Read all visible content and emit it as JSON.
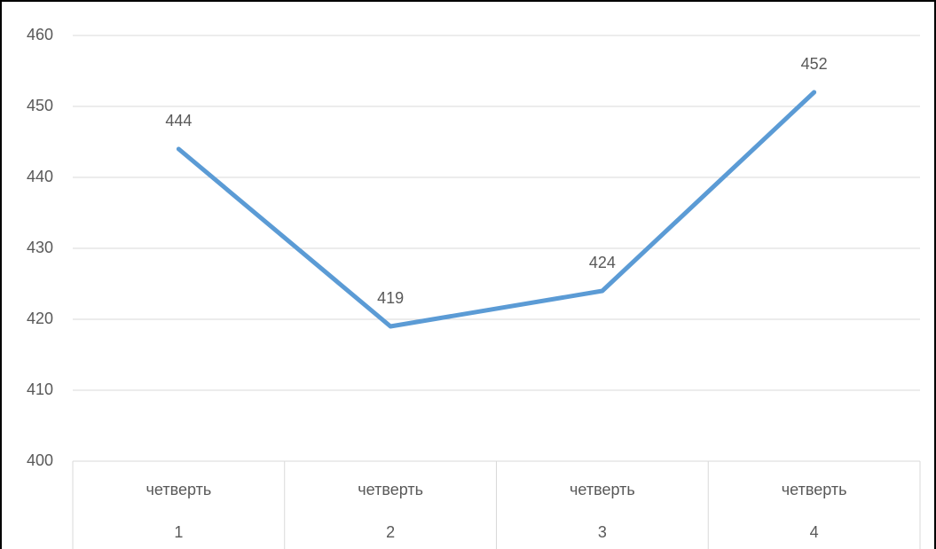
{
  "chart_data": {
    "type": "line",
    "categories": [
      [
        "четверть",
        "1"
      ],
      [
        "четверть",
        "2"
      ],
      [
        "четверть",
        "3"
      ],
      [
        "четверть",
        "4"
      ]
    ],
    "series": [
      {
        "values": [
          444,
          419,
          424,
          452
        ],
        "color": "#5b9bd5"
      }
    ],
    "ylim": [
      400,
      460
    ],
    "yticks": [
      400,
      410,
      420,
      430,
      440,
      450,
      460
    ],
    "grid": true
  }
}
